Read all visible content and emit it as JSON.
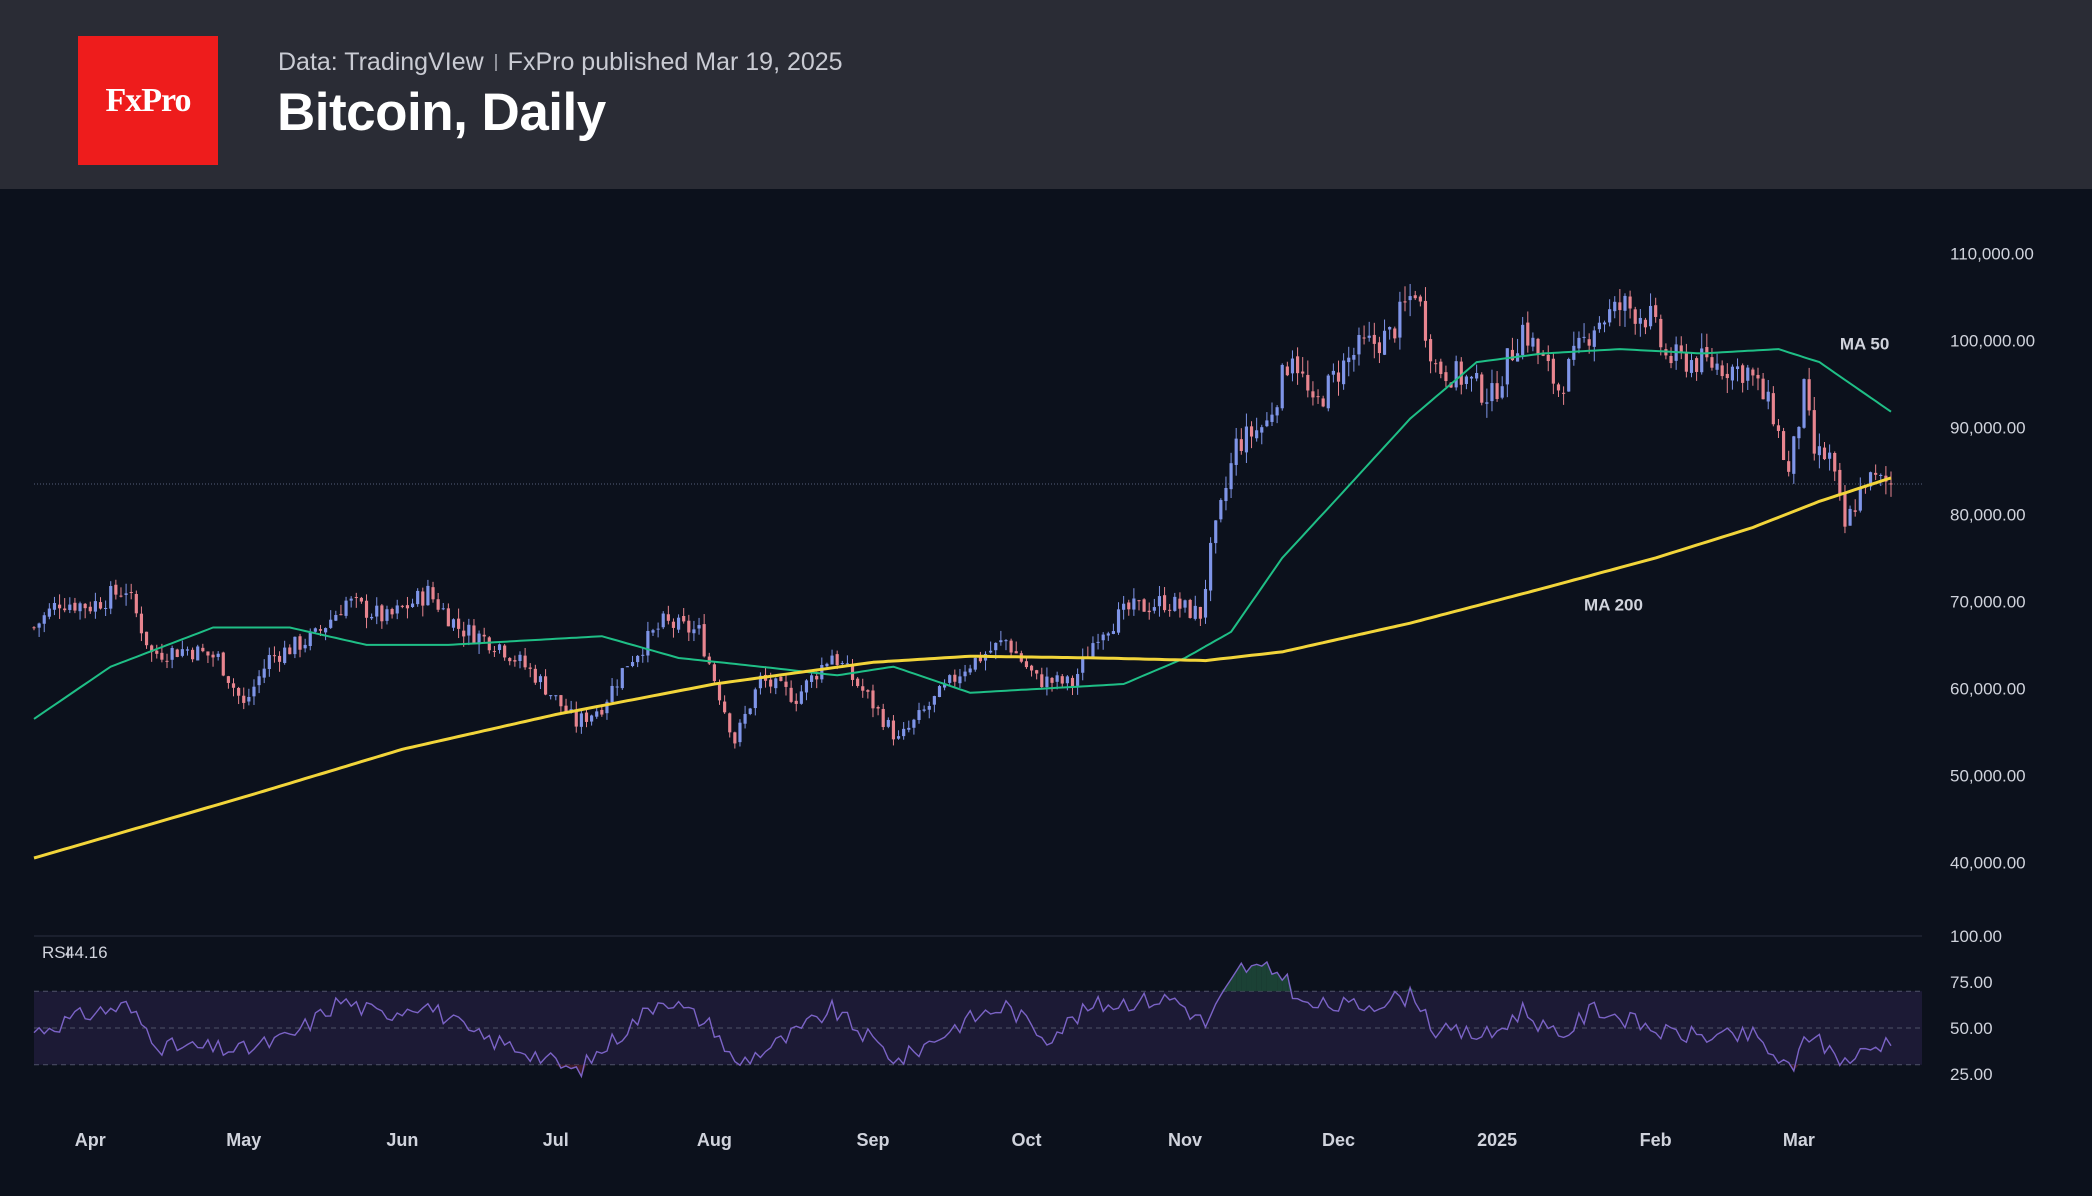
{
  "header": {
    "logo_text": "FxPro",
    "source": "Data: TradingVIew",
    "publisher": "FxPro published Mar 19, 2025",
    "title": "Bitcoin, Daily"
  },
  "colors": {
    "header_bg": "#2a2c35",
    "chart_bg": "#0c111c",
    "logo_bg": "#ee1c1c",
    "candle_up": "#7f95e8",
    "candle_down": "#e8858f",
    "ma50": "#1fbf86",
    "ma200": "#f2d53a",
    "rsi_line": "#7b63c6",
    "rsi_band": "#1c1a35"
  },
  "chart_data": [
    {
      "type": "candlestick",
      "title": "Bitcoin, Daily",
      "x_tick_labels": [
        "Apr",
        "May",
        "Jun",
        "Jul",
        "Aug",
        "Sep",
        "Oct",
        "Nov",
        "Dec",
        "2025",
        "Feb",
        "Mar"
      ],
      "x_range": [
        "2024-03-21",
        "2025-03-19"
      ],
      "y_tick_labels": [
        "110,000.00",
        "100,000.00",
        "90,000.00",
        "80,000.00",
        "70,000.00",
        "60,000.00",
        "50,000.00",
        "40,000.00"
      ],
      "ylim": [
        32000,
        112000
      ],
      "y_axis_side": "right",
      "current_price_line": 83500,
      "close_anchors": [
        [
          "2024-03-21",
          67000
        ],
        [
          "2024-03-26",
          70000
        ],
        [
          "2024-04-01",
          69500
        ],
        [
          "2024-04-08",
          71500
        ],
        [
          "2024-04-13",
          64000
        ],
        [
          "2024-04-20",
          64500
        ],
        [
          "2024-04-26",
          63500
        ],
        [
          "2024-05-01",
          58000
        ],
        [
          "2024-05-06",
          63500
        ],
        [
          "2024-05-15",
          66000
        ],
        [
          "2024-05-21",
          70000
        ],
        [
          "2024-05-29",
          68000
        ],
        [
          "2024-06-06",
          71000
        ],
        [
          "2024-06-12",
          67000
        ],
        [
          "2024-06-20",
          65000
        ],
        [
          "2024-06-27",
          61500
        ],
        [
          "2024-07-05",
          56000
        ],
        [
          "2024-07-10",
          58000
        ],
        [
          "2024-07-15",
          63000
        ],
        [
          "2024-07-22",
          67500
        ],
        [
          "2024-07-29",
          66500
        ],
        [
          "2024-08-05",
          54000
        ],
        [
          "2024-08-10",
          61000
        ],
        [
          "2024-08-17",
          59000
        ],
        [
          "2024-08-24",
          64000
        ],
        [
          "2024-08-31",
          59000
        ],
        [
          "2024-09-06",
          54000
        ],
        [
          "2024-09-12",
          58000
        ],
        [
          "2024-09-19",
          62500
        ],
        [
          "2024-09-27",
          65500
        ],
        [
          "2024-10-03",
          61000
        ],
        [
          "2024-10-10",
          60500
        ],
        [
          "2024-10-15",
          66500
        ],
        [
          "2024-10-21",
          69000
        ],
        [
          "2024-10-28",
          70000
        ],
        [
          "2024-11-04",
          68500
        ],
        [
          "2024-11-06",
          75500
        ],
        [
          "2024-11-11",
          88000
        ],
        [
          "2024-11-17",
          90500
        ],
        [
          "2024-11-22",
          99000
        ],
        [
          "2024-11-26",
          92000
        ],
        [
          "2024-12-01",
          96500
        ],
        [
          "2024-12-05",
          99000
        ],
        [
          "2024-12-11",
          100500
        ],
        [
          "2024-12-16",
          106000
        ],
        [
          "2024-12-20",
          97000
        ],
        [
          "2024-12-26",
          95500
        ],
        [
          "2024-12-31",
          93500
        ],
        [
          "2025-01-06",
          101500
        ],
        [
          "2025-01-13",
          94500
        ],
        [
          "2025-01-20",
          102000
        ],
        [
          "2025-01-26",
          104000
        ],
        [
          "2025-01-31",
          102500
        ],
        [
          "2025-02-03",
          98000
        ],
        [
          "2025-02-10",
          97500
        ],
        [
          "2025-02-19",
          96500
        ],
        [
          "2025-02-24",
          91500
        ],
        [
          "2025-02-27",
          84500
        ],
        [
          "2025-03-02",
          94000
        ],
        [
          "2025-03-04",
          87000
        ],
        [
          "2025-03-07",
          86500
        ],
        [
          "2025-03-10",
          78500
        ],
        [
          "2025-03-14",
          84000
        ],
        [
          "2025-03-19",
          83500
        ]
      ],
      "series": [
        {
          "name": "MA 50",
          "values": [
            [
              "2024-03-21",
              56500
            ],
            [
              "2024-04-05",
              62500
            ],
            [
              "2024-04-25",
              67000
            ],
            [
              "2024-05-10",
              67000
            ],
            [
              "2024-05-25",
              65000
            ],
            [
              "2024-06-10",
              65000
            ],
            [
              "2024-06-25",
              65500
            ],
            [
              "2024-07-10",
              66000
            ],
            [
              "2024-07-25",
              63500
            ],
            [
              "2024-08-10",
              62500
            ],
            [
              "2024-08-25",
              61500
            ],
            [
              "2024-09-05",
              62500
            ],
            [
              "2024-09-20",
              59500
            ],
            [
              "2024-10-05",
              60000
            ],
            [
              "2024-10-20",
              60500
            ],
            [
              "2024-11-01",
              63500
            ],
            [
              "2024-11-10",
              66500
            ],
            [
              "2024-11-20",
              75000
            ],
            [
              "2024-12-01",
              82000
            ],
            [
              "2024-12-15",
              91000
            ],
            [
              "2024-12-28",
              97500
            ],
            [
              "2025-01-10",
              98500
            ],
            [
              "2025-01-25",
              99000
            ],
            [
              "2025-02-10",
              98500
            ],
            [
              "2025-02-25",
              99000
            ],
            [
              "2025-03-05",
              97500
            ],
            [
              "2025-03-19",
              91800
            ]
          ]
        },
        {
          "name": "MA 200",
          "values": [
            [
              "2024-03-21",
              40500
            ],
            [
              "2024-05-01",
              47500
            ],
            [
              "2024-06-01",
              53000
            ],
            [
              "2024-07-01",
              57000
            ],
            [
              "2024-08-01",
              60500
            ],
            [
              "2024-09-01",
              63000
            ],
            [
              "2024-09-20",
              63700
            ],
            [
              "2024-10-15",
              63500
            ],
            [
              "2024-11-05",
              63200
            ],
            [
              "2024-11-20",
              64200
            ],
            [
              "2024-12-15",
              67500
            ],
            [
              "2025-01-10",
              71500
            ],
            [
              "2025-02-01",
              75000
            ],
            [
              "2025-02-20",
              78500
            ],
            [
              "2025-03-05",
              81500
            ],
            [
              "2025-03-19",
              84200
            ]
          ]
        }
      ],
      "annotations": [
        {
          "text": "MA 50",
          "date": "2025-03-09",
          "value": 100000
        },
        {
          "text": "MA 200",
          "date": "2025-01-18",
          "value": 70000
        }
      ]
    },
    {
      "type": "line",
      "title": "RSI",
      "legend": "RSI",
      "current_value": "44.16",
      "y_tick_labels": [
        "100.00",
        "75.00",
        "50.00",
        "25.00"
      ],
      "ylim": [
        0,
        100
      ],
      "overbought": 70,
      "oversold": 30,
      "midline": 50,
      "series": [
        {
          "values": [
            [
              "2024-03-21",
              48
            ],
            [
              "2024-04-01",
              58
            ],
            [
              "2024-04-08",
              62
            ],
            [
              "2024-04-15",
              40
            ],
            [
              "2024-05-01",
              38
            ],
            [
              "2024-05-10",
              45
            ],
            [
              "2024-05-20",
              65
            ],
            [
              "2024-05-28",
              57
            ],
            [
              "2024-06-05",
              64
            ],
            [
              "2024-06-15",
              46
            ],
            [
              "2024-06-25",
              38
            ],
            [
              "2024-07-05",
              26
            ],
            [
              "2024-07-15",
              50
            ],
            [
              "2024-07-22",
              67
            ],
            [
              "2024-08-01",
              50
            ],
            [
              "2024-08-05",
              30
            ],
            [
              "2024-08-15",
              44
            ],
            [
              "2024-08-24",
              60
            ],
            [
              "2024-09-06",
              32
            ],
            [
              "2024-09-19",
              54
            ],
            [
              "2024-09-27",
              62
            ],
            [
              "2024-10-05",
              45
            ],
            [
              "2024-10-14",
              62
            ],
            [
              "2024-10-20",
              64
            ],
            [
              "2024-10-30",
              66
            ],
            [
              "2024-11-05",
              52
            ],
            [
              "2024-11-12",
              83
            ],
            [
              "2024-11-20",
              80
            ],
            [
              "2024-11-24",
              62
            ],
            [
              "2024-12-05",
              62
            ],
            [
              "2024-12-16",
              68
            ],
            [
              "2024-12-20",
              48
            ],
            [
              "2024-12-31",
              46
            ],
            [
              "2025-01-06",
              60
            ],
            [
              "2025-01-13",
              44
            ],
            [
              "2025-01-20",
              61
            ],
            [
              "2025-02-03",
              47
            ],
            [
              "2025-02-15",
              45
            ],
            [
              "2025-02-20",
              46
            ],
            [
              "2025-02-28",
              25
            ],
            [
              "2025-03-02",
              48
            ],
            [
              "2025-03-10",
              32
            ],
            [
              "2025-03-19",
              44
            ]
          ]
        }
      ]
    }
  ]
}
